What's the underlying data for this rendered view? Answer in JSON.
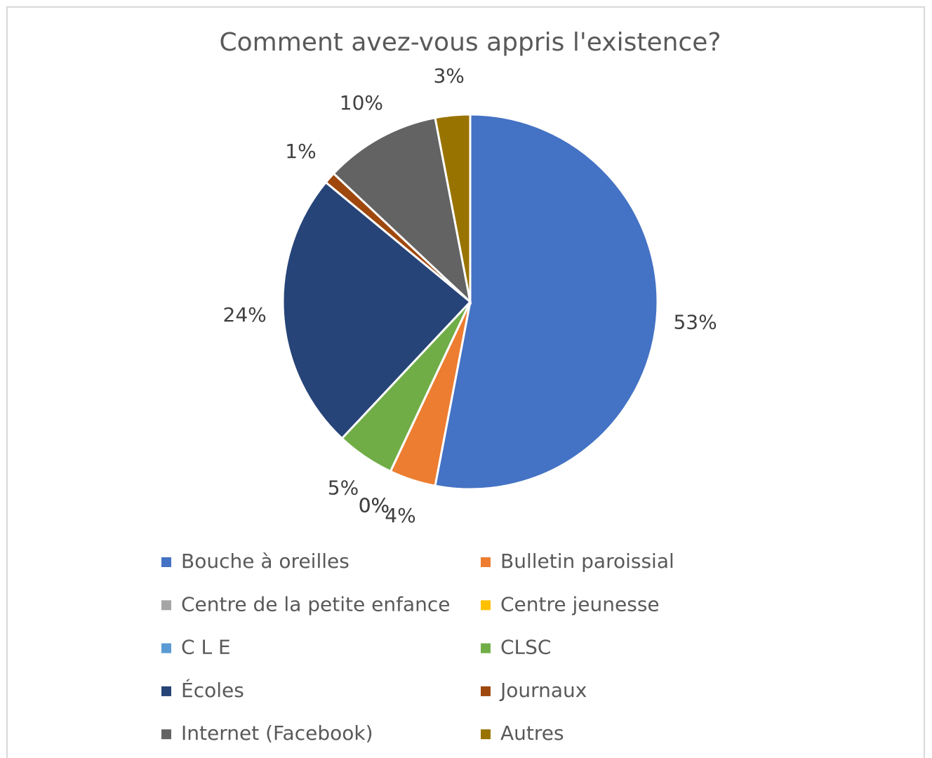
{
  "chart_data": {
    "type": "pie",
    "title": "Comment avez-vous appris l'existence?",
    "categories": [
      "Bouche à oreilles",
      "Bulletin paroissial",
      "Centre de la petite enfance",
      "Centre jeunesse",
      "C L E",
      "CLSC",
      "Écoles",
      "Journaux",
      "Internet (Facebook)",
      "Autres"
    ],
    "values": [
      53,
      4,
      0,
      0,
      0,
      5,
      24,
      1,
      10,
      3
    ],
    "value_labels": [
      "53%",
      "4%",
      "0%",
      "0%",
      "0%",
      "5%",
      "24%",
      "1%",
      "10%",
      "3%"
    ],
    "colors": [
      "#4472c4",
      "#ed7d31",
      "#a5a5a5",
      "#ffc000",
      "#5b9bd5",
      "#70ad47",
      "#264478",
      "#9e480e",
      "#636363",
      "#997300"
    ],
    "legend": "bottom"
  }
}
